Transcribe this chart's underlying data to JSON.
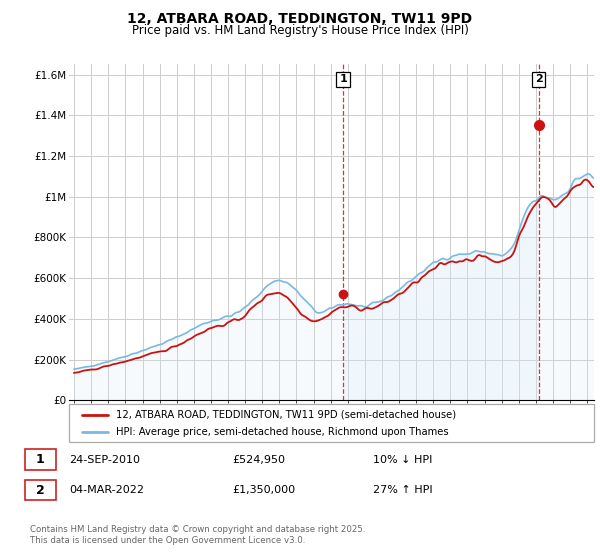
{
  "title": "12, ATBARA ROAD, TEDDINGTON, TW11 9PD",
  "subtitle": "Price paid vs. HM Land Registry's House Price Index (HPI)",
  "legend_line1": "12, ATBARA ROAD, TEDDINGTON, TW11 9PD (semi-detached house)",
  "legend_line2": "HPI: Average price, semi-detached house, Richmond upon Thames",
  "annotation1_date": "24-SEP-2010",
  "annotation1_price": "£524,950",
  "annotation1_hpi": "10% ↓ HPI",
  "annotation2_date": "04-MAR-2022",
  "annotation2_price": "£1,350,000",
  "annotation2_hpi": "27% ↑ HPI",
  "footer": "Contains HM Land Registry data © Crown copyright and database right 2025.\nThis data is licensed under the Open Government Licence v3.0.",
  "hpi_color": "#7ab9e0",
  "hpi_fill_color": "#d6eaf8",
  "price_color": "#cc1111",
  "vline_color": "#cc2222",
  "background_color": "#ffffff",
  "grid_color": "#cccccc",
  "ylim": [
    0,
    1650000
  ],
  "yticks": [
    0,
    200000,
    400000,
    600000,
    800000,
    1000000,
    1200000,
    1400000,
    1600000
  ],
  "ytick_labels": [
    "£0",
    "£200K",
    "£400K",
    "£600K",
    "£800K",
    "£1M",
    "£1.2M",
    "£1.4M",
    "£1.6M"
  ],
  "sale1_x": 2010.73,
  "sale1_y": 524950,
  "sale2_x": 2022.17,
  "sale2_y": 1350000,
  "xlim_left": 1994.7,
  "xlim_right": 2025.4
}
